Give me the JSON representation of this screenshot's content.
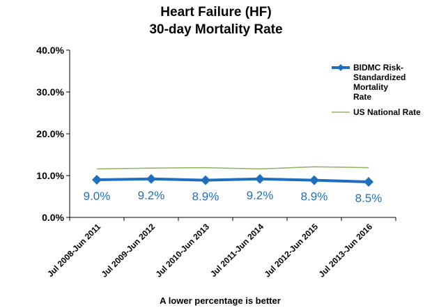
{
  "chart_data": {
    "type": "line",
    "title": [
      "Heart Failure (HF)",
      "30-day Mortality Rate"
    ],
    "categories": [
      "Jul 2008-Jun 2011",
      "Jul 2009-Jun 2012",
      "Jul 2010-Jun 2013",
      "Jul 2011-Jun 2014",
      "Jul 2012-Jun 2015",
      "Jul 2013-Jun 2016"
    ],
    "series": [
      {
        "name": "BIDMC Risk-Standardized Mortality Rate",
        "name_lines": [
          "BIDMC Risk-",
          "Standardized",
          "Mortality",
          "Rate"
        ],
        "values": [
          9.0,
          9.2,
          8.9,
          9.2,
          8.9,
          8.5
        ],
        "labels": [
          "9.0%",
          "9.2%",
          "8.9%",
          "9.2%",
          "8.9%",
          "8.5%"
        ],
        "color": "#1f6fbf",
        "marker": "diamond"
      },
      {
        "name": "US National Rate",
        "values": [
          11.6,
          11.8,
          11.9,
          11.6,
          12.1,
          11.9
        ],
        "color": "#8fb35a",
        "marker": "none"
      }
    ],
    "ylim": [
      0,
      40
    ],
    "yticks": [
      0,
      10,
      20,
      30,
      40
    ],
    "ytick_labels": [
      "0.0%",
      "10.0%",
      "20.0%",
      "30.0%",
      "40.0%"
    ],
    "legend": "right",
    "grid": false,
    "note": "A lower percentage is better"
  }
}
